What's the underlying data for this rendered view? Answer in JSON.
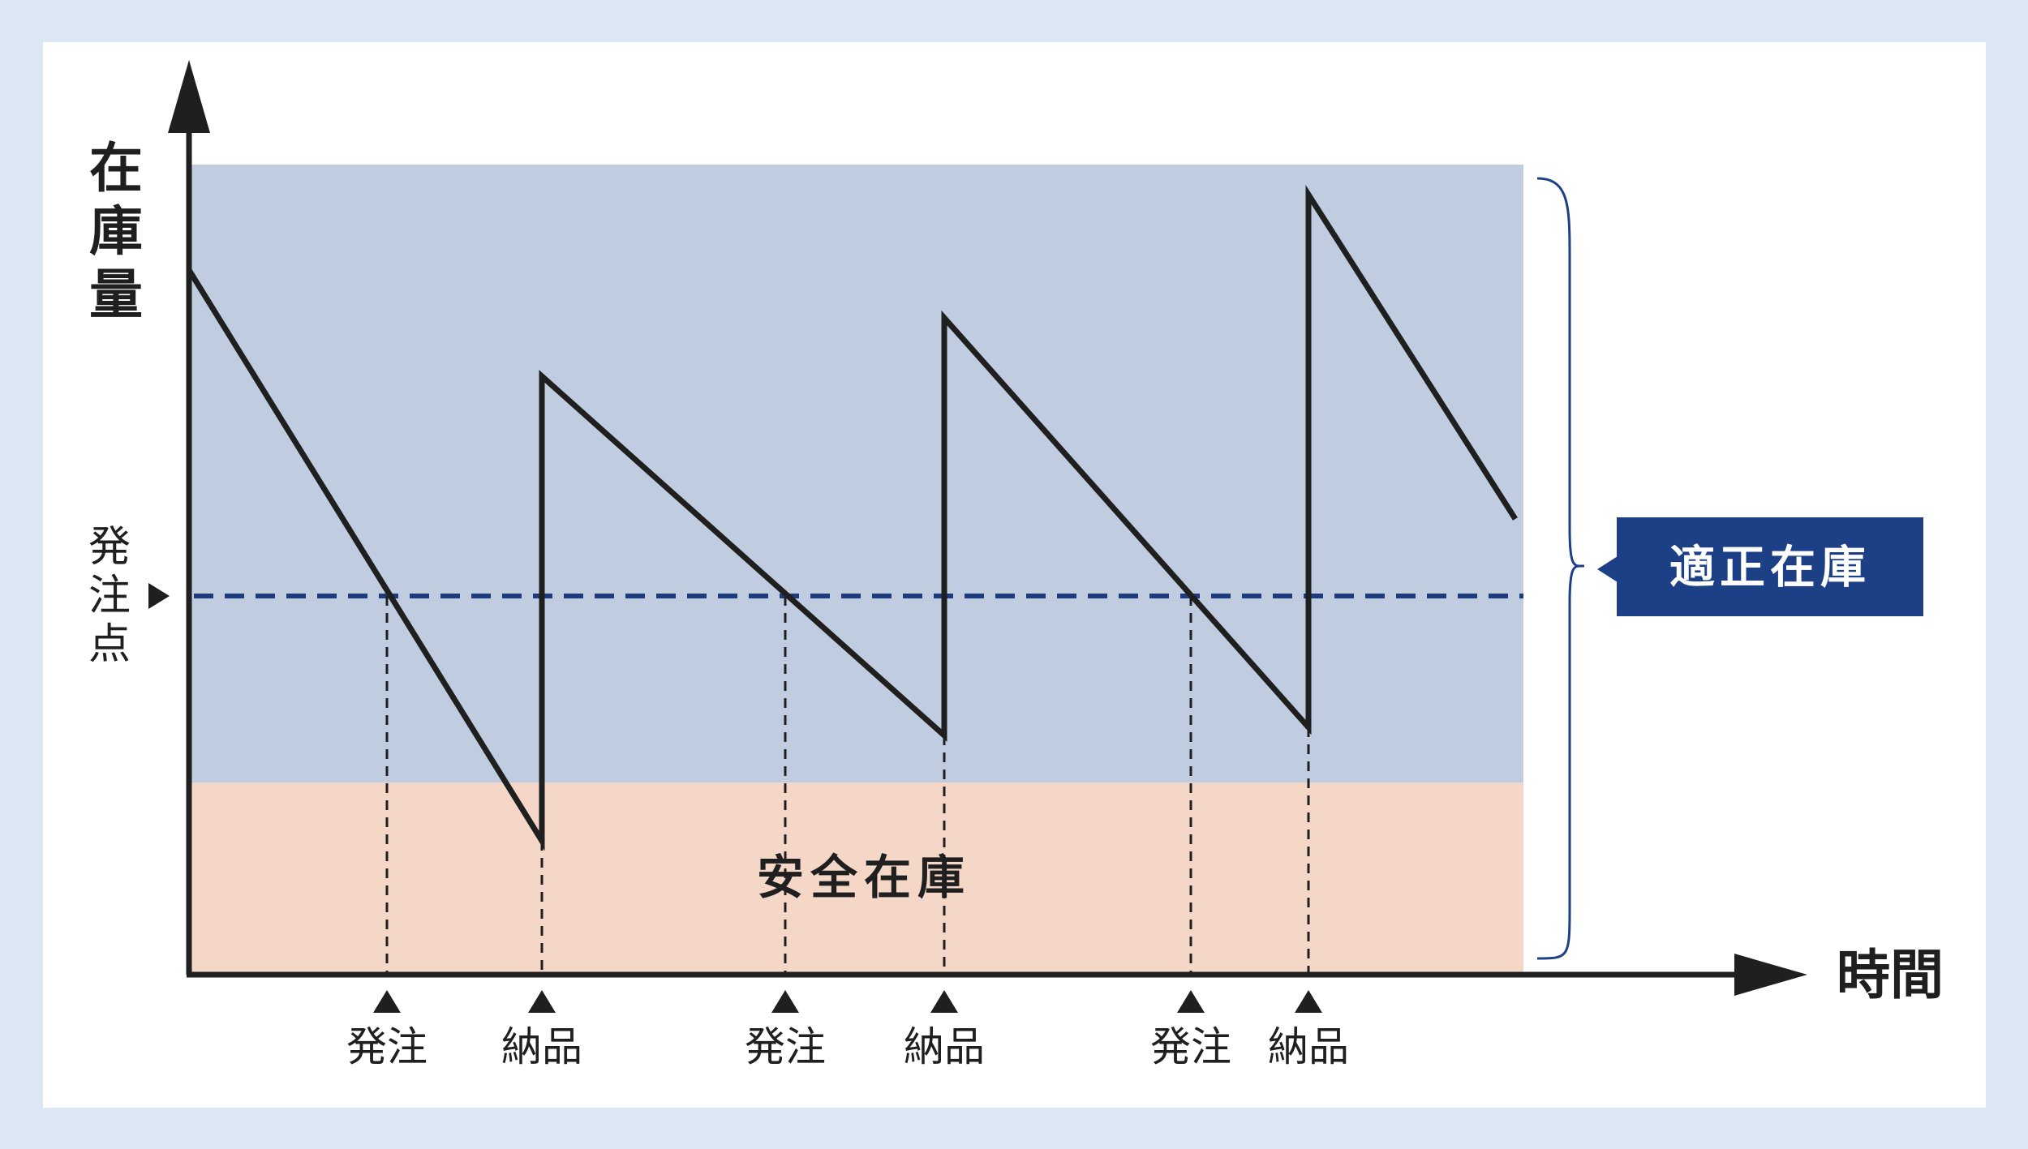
{
  "y_axis_label": "在庫量",
  "x_axis_label": "時間",
  "reorder_point_label": "発注点",
  "zones": {
    "safety_stock": "安全在庫",
    "proper_stock": "適正在庫"
  },
  "events": [
    {
      "label": "発注"
    },
    {
      "label": "納品"
    },
    {
      "label": "発注"
    },
    {
      "label": "納品"
    },
    {
      "label": "発注"
    },
    {
      "label": "納品"
    }
  ],
  "colors": {
    "background": "#dbe7f2",
    "proper_zone": "#c0ccdf",
    "safety_zone": "#f5d7c8",
    "reorder_line": "#1f3a7a",
    "label_box": "#1c3f86",
    "line": "#1f1f1f"
  }
}
